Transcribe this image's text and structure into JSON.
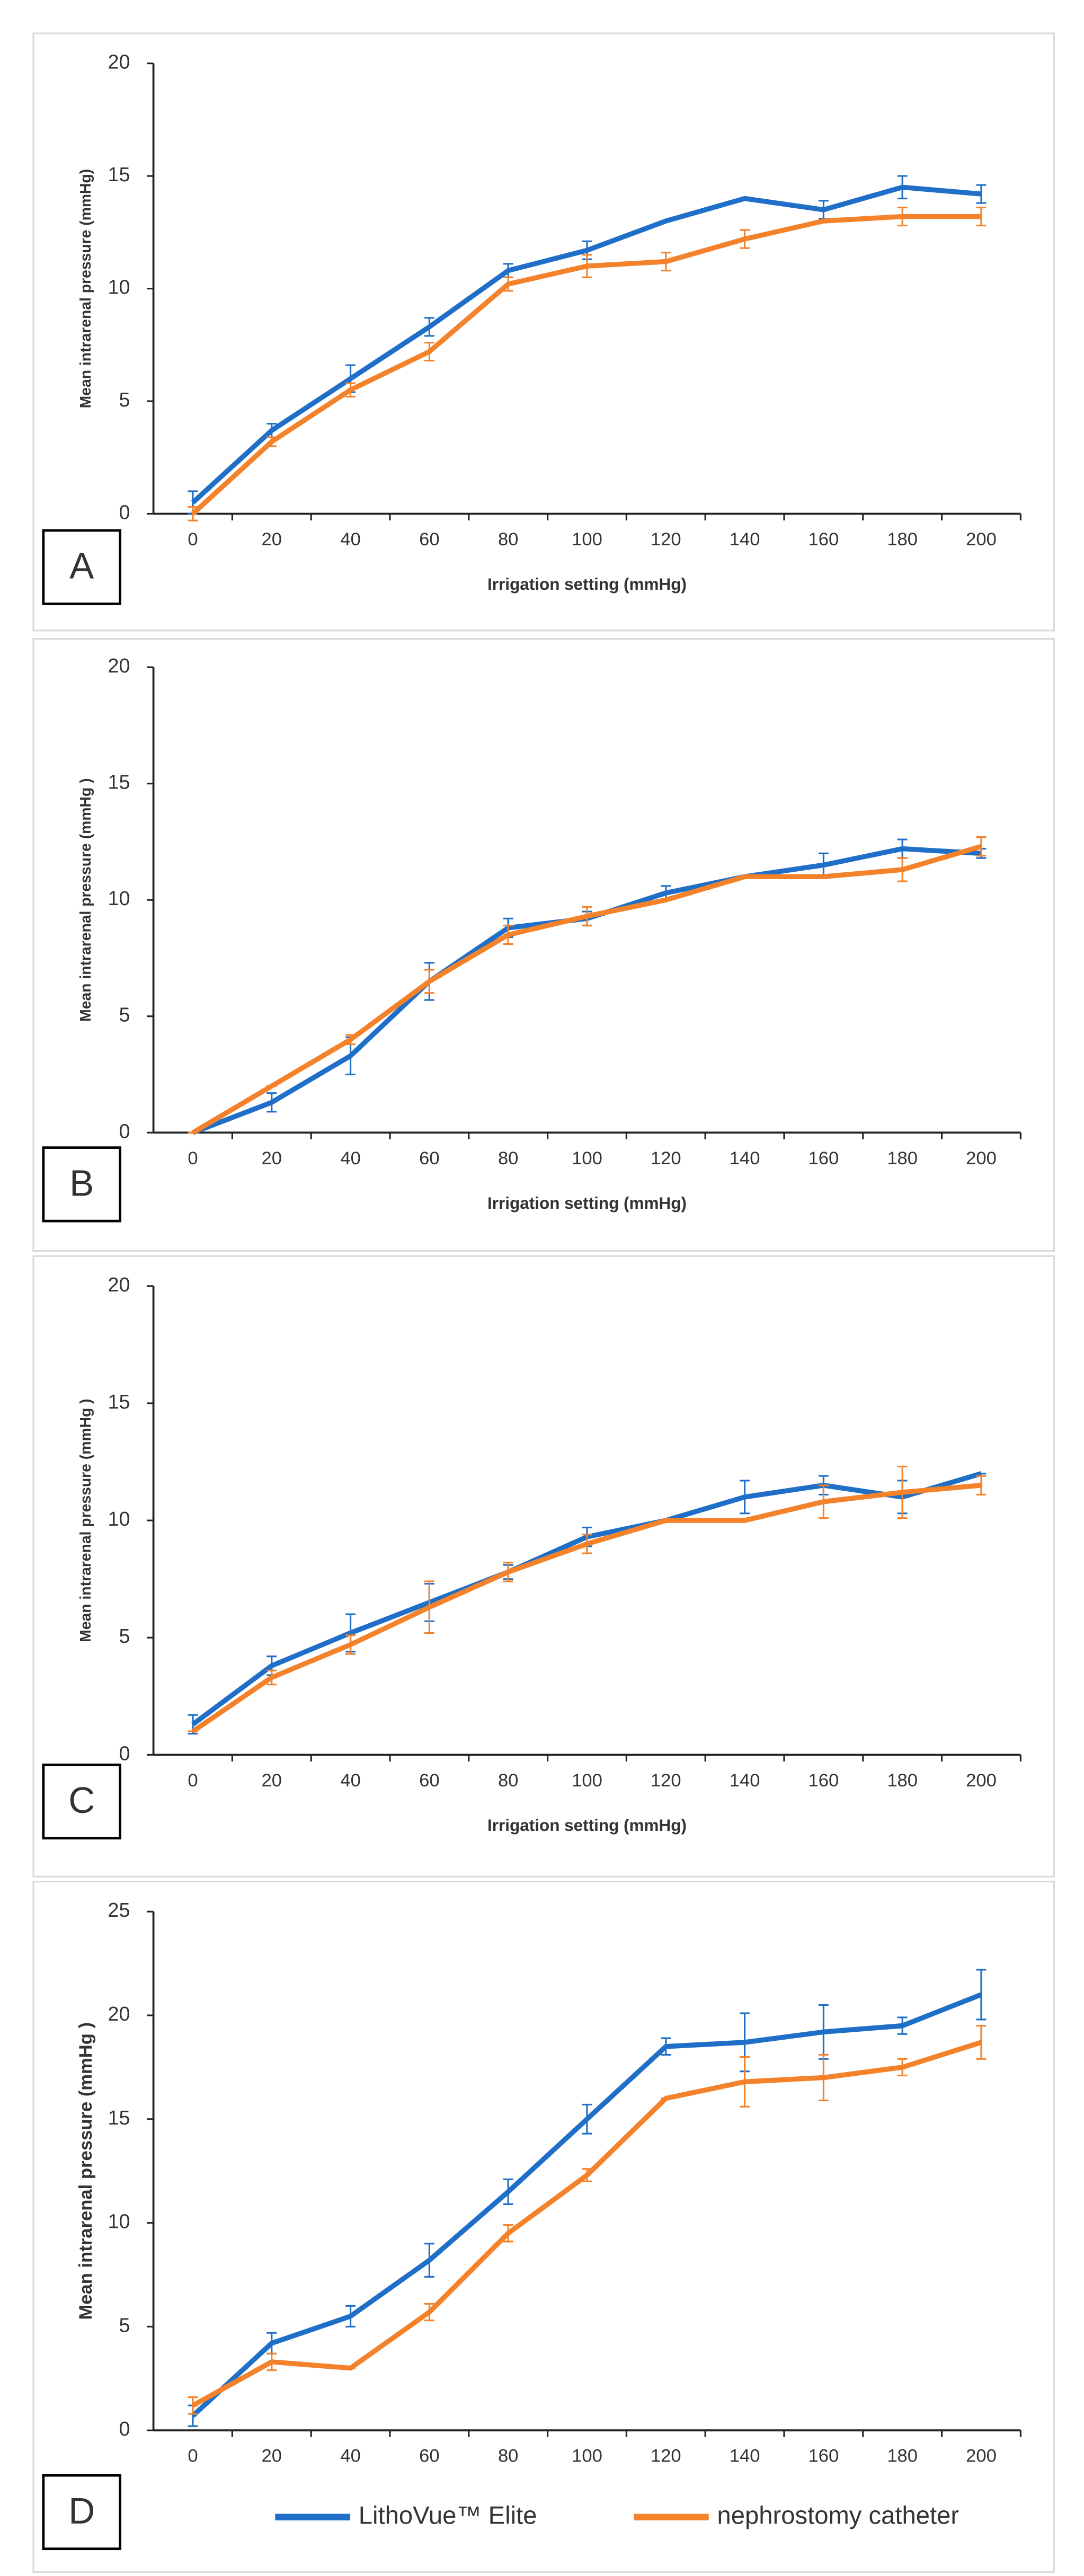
{
  "chart_data": [
    {
      "type": "line",
      "panel_label": "A",
      "y_label": "Mean intrarenal pressure (mmHg)",
      "x_label": "Irrigation setting (mmHg)",
      "categories": [
        "0",
        "20",
        "40",
        "60",
        "80",
        "100",
        "120",
        "140",
        "160",
        "180",
        "200"
      ],
      "ylim": [
        0,
        20
      ],
      "yticks": [
        0,
        5,
        10,
        15,
        20
      ],
      "series": [
        {
          "color": "#1f6fc8",
          "values": [
            0.5,
            3.7,
            6,
            8.3,
            10.8,
            11.7,
            13,
            14,
            13.5,
            14.5,
            14.2
          ],
          "errors": [
            0.5,
            0.3,
            0.6,
            0.4,
            0.3,
            0.4,
            0,
            0,
            0.4,
            0.5,
            0.4
          ]
        },
        {
          "color": "#f4822a",
          "values": [
            0,
            3.2,
            5.5,
            7.2,
            10.2,
            11,
            11.2,
            12.2,
            13,
            13.2,
            13.2
          ],
          "errors": [
            0.3,
            0.2,
            0.3,
            0.4,
            0.3,
            0.5,
            0.4,
            0.4,
            0,
            0.4,
            0.4
          ]
        }
      ]
    },
    {
      "type": "line",
      "panel_label": "B",
      "y_label": "Mean intrarenal pressure (mmHg )",
      "x_label": "Irrigation setting (mmHg)",
      "categories": [
        "0",
        "20",
        "40",
        "60",
        "80",
        "100",
        "120",
        "140",
        "160",
        "180",
        "200"
      ],
      "ylim": [
        0,
        20
      ],
      "yticks": [
        0,
        5,
        10,
        15,
        20
      ],
      "series": [
        {
          "color": "#1f6fc8",
          "values": [
            0,
            1.3,
            3.3,
            6.5,
            8.8,
            9.2,
            10.3,
            11,
            11.5,
            12.2,
            12
          ],
          "errors": [
            0,
            0.4,
            0.8,
            0.8,
            0.4,
            0.3,
            0.3,
            0,
            0.5,
            0.4,
            0.2
          ]
        },
        {
          "color": "#f4822a",
          "values": [
            0,
            2,
            4,
            6.5,
            8.5,
            9.3,
            10,
            11,
            11,
            11.3,
            12.3
          ],
          "errors": [
            0,
            0,
            0.2,
            0.5,
            0.4,
            0.4,
            0,
            0,
            0,
            0.5,
            0.4
          ]
        }
      ]
    },
    {
      "type": "line",
      "panel_label": "C",
      "y_label": "Mean intrarenal pressure (mmHg )",
      "x_label": "Irrigation setting (mmHg)",
      "categories": [
        "0",
        "20",
        "40",
        "60",
        "80",
        "100",
        "120",
        "140",
        "160",
        "180",
        "200"
      ],
      "ylim": [
        0,
        20
      ],
      "yticks": [
        0,
        5,
        10,
        15,
        20
      ],
      "series": [
        {
          "color": "#1f6fc8",
          "values": [
            1.3,
            3.8,
            5.2,
            6.5,
            7.8,
            9.3,
            10,
            11,
            11.5,
            11,
            12
          ],
          "errors": [
            0.4,
            0.4,
            0.8,
            0.8,
            0.3,
            0.4,
            0,
            0.7,
            0.4,
            0.7,
            0
          ]
        },
        {
          "color": "#f4822a",
          "values": [
            1,
            3.3,
            4.7,
            6.3,
            7.8,
            9,
            10,
            10,
            10.8,
            11.2,
            11.5
          ],
          "errors": [
            0,
            0.3,
            0.4,
            1.1,
            0.4,
            0.4,
            0,
            0,
            0.7,
            1.1,
            0.4
          ]
        }
      ]
    },
    {
      "type": "line",
      "panel_label": "D",
      "y_label": "Mean intrarenal pressure (mmHg )",
      "legend": "bottom",
      "categories": [
        "0",
        "20",
        "40",
        "60",
        "80",
        "100",
        "120",
        "140",
        "160",
        "180",
        "200"
      ],
      "ylim": [
        0,
        25
      ],
      "yticks": [
        0,
        5,
        10,
        15,
        20,
        25
      ],
      "series": [
        {
          "name": "LithoVue™ Elite",
          "color": "#1f6fc8",
          "values": [
            0.7,
            4.2,
            5.5,
            8.2,
            11.5,
            15,
            18.5,
            18.7,
            19.2,
            19.5,
            21
          ],
          "errors": [
            0.5,
            0.5,
            0.5,
            0.8,
            0.6,
            0.7,
            0.4,
            1.4,
            1.3,
            0.4,
            1.2
          ]
        },
        {
          "name": "nephrostomy catheter",
          "color": "#f4822a",
          "values": [
            1.2,
            3.3,
            3,
            5.7,
            9.5,
            12.3,
            16,
            16.8,
            17,
            17.5,
            18.7
          ],
          "errors": [
            0.4,
            0.4,
            0,
            0.4,
            0.4,
            0.3,
            0,
            1.2,
            1.1,
            0.4,
            0.8
          ]
        }
      ]
    }
  ]
}
